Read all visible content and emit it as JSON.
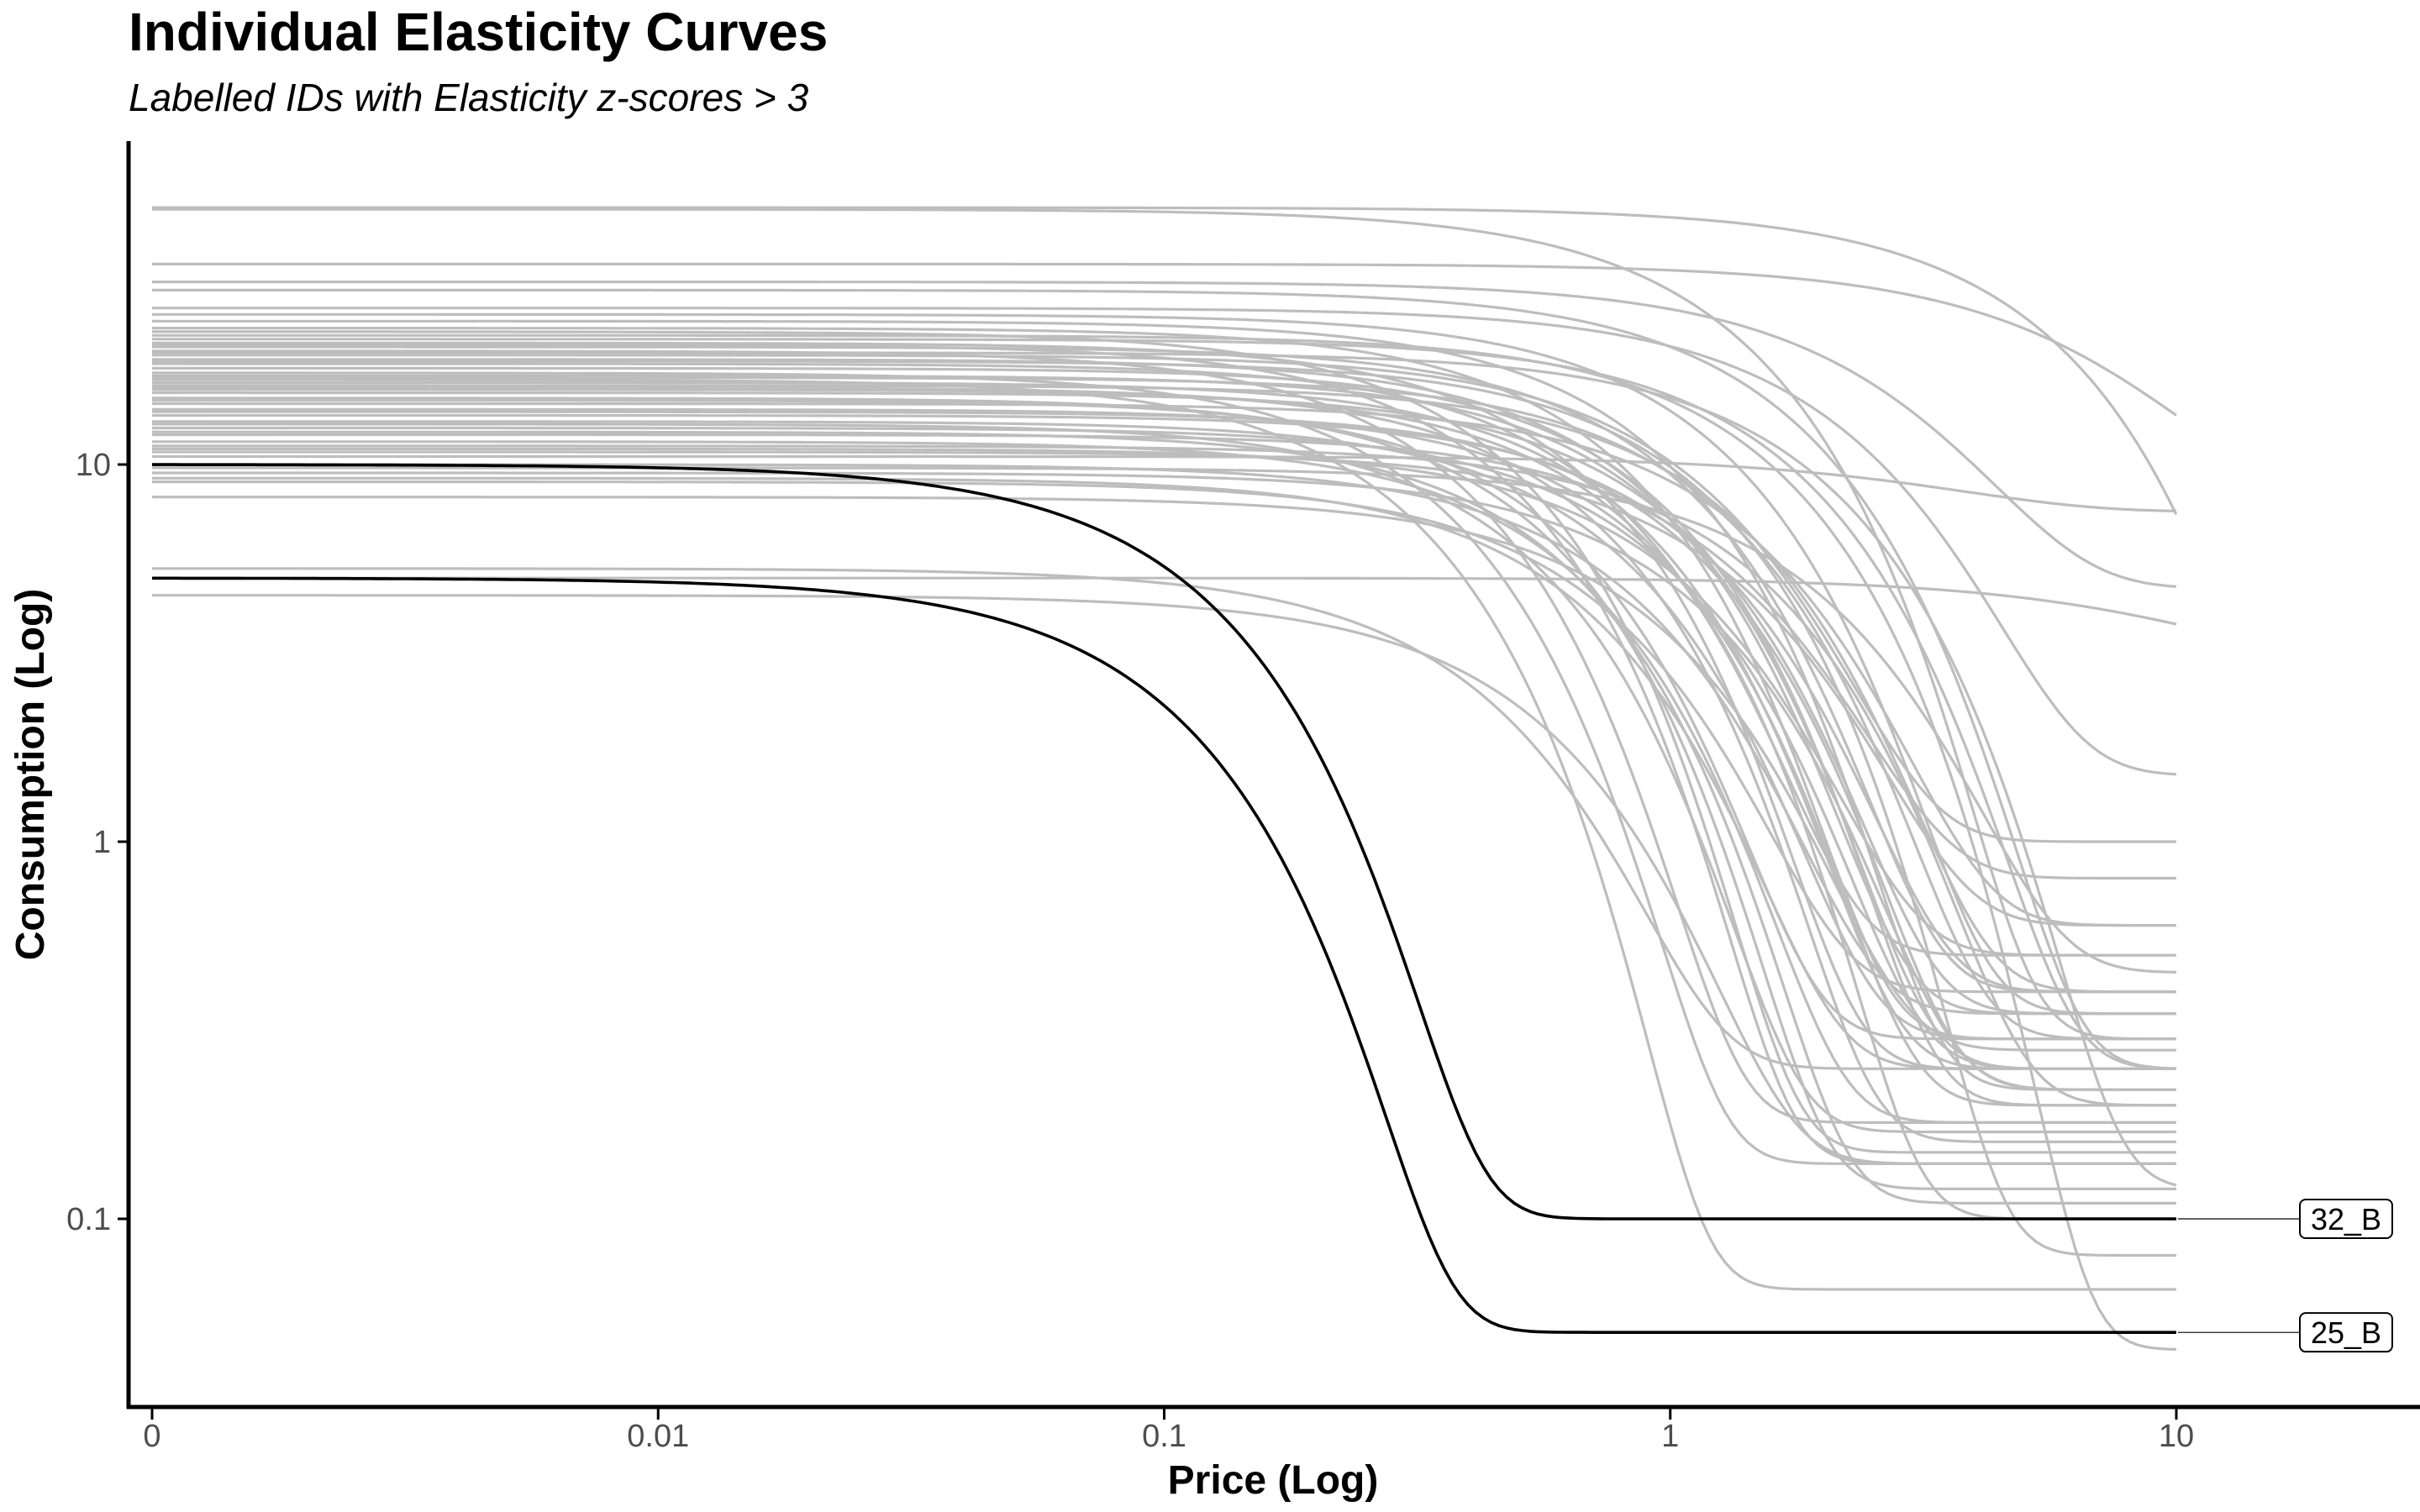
{
  "chart_data": {
    "type": "line",
    "title": "Individual Elasticity Curves",
    "subtitle": "Labelled IDs with Elasticity z-scores > 3",
    "xlabel": "Price (Log)",
    "ylabel": "Consumption (Log)",
    "x_scale": "log",
    "y_scale": "log",
    "x_ticks": [
      {
        "value": 0.001,
        "label": "0"
      },
      {
        "value": 0.01,
        "label": "0.01"
      },
      {
        "value": 0.1,
        "label": "0.1"
      },
      {
        "value": 1,
        "label": "1"
      },
      {
        "value": 10,
        "label": "10"
      }
    ],
    "y_ticks": [
      {
        "value": 0.1,
        "label": "0.1"
      },
      {
        "value": 1,
        "label": "1"
      },
      {
        "value": 10,
        "label": "10"
      }
    ],
    "xlim": [
      0.00088,
      50
    ],
    "ylim": [
      0.03,
      65
    ],
    "grid": false,
    "colors": {
      "background": "#e0e0e0",
      "highlight": "#000000",
      "axis": "#000000",
      "tick_label": "#4d4d4d"
    },
    "background_series": [
      {
        "q0": 48.0,
        "alpha": 0.06,
        "qmin": 0.2
      },
      {
        "q0": 47.5,
        "alpha": 0.5,
        "qmin": 0.3
      },
      {
        "q0": 34.0,
        "alpha": 0.05,
        "qmin": 8.2
      },
      {
        "q0": 30.5,
        "alpha": 0.2,
        "qmin": 4.7
      },
      {
        "q0": 29.0,
        "alpha": 0.35,
        "qmin": 0.25
      },
      {
        "q0": 25.0,
        "alpha": 0.6,
        "qmin": 0.35
      },
      {
        "q0": 24.0,
        "alpha": 0.9,
        "qmin": 0.22
      },
      {
        "q0": 23.0,
        "alpha": 1.2,
        "qmin": 0.3
      },
      {
        "q0": 22.5,
        "alpha": 2.5,
        "qmin": 0.15
      },
      {
        "q0": 21.0,
        "alpha": 1.5,
        "qmin": 0.25
      },
      {
        "q0": 20.5,
        "alpha": 0.8,
        "qmin": 0.4
      },
      {
        "q0": 20.0,
        "alpha": 3.5,
        "qmin": 0.18
      },
      {
        "q0": 19.5,
        "alpha": 0.7,
        "qmin": 1.0
      },
      {
        "q0": 19.0,
        "alpha": 1.0,
        "qmin": 0.35
      },
      {
        "q0": 18.5,
        "alpha": 1.3,
        "qmin": 0.5
      },
      {
        "q0": 18.0,
        "alpha": 0.9,
        "qmin": 0.2
      },
      {
        "q0": 17.5,
        "alpha": 4.0,
        "qmin": 0.14
      },
      {
        "q0": 17.0,
        "alpha": 0.6,
        "qmin": 0.3
      },
      {
        "q0": 16.5,
        "alpha": 1.1,
        "qmin": 0.25
      },
      {
        "q0": 16.0,
        "alpha": 1.4,
        "qmin": 0.16
      },
      {
        "q0": 15.5,
        "alpha": 0.8,
        "qmin": 0.35
      },
      {
        "q0": 15.0,
        "alpha": 2.0,
        "qmin": 0.12
      },
      {
        "q0": 14.5,
        "alpha": 0.5,
        "qmin": 0.6
      },
      {
        "q0": 14.0,
        "alpha": 1.0,
        "qmin": 0.2
      },
      {
        "q0": 13.5,
        "alpha": 0.7,
        "qmin": 0.4
      },
      {
        "q0": 13.0,
        "alpha": 1.2,
        "qmin": 0.3
      },
      {
        "q0": 12.5,
        "alpha": 0.9,
        "qmin": 0.25
      },
      {
        "q0": 12.0,
        "alpha": 0.6,
        "qmin": 0.8
      },
      {
        "q0": 11.5,
        "alpha": 1.6,
        "qmin": 0.18
      },
      {
        "q0": 11.0,
        "alpha": 0.8,
        "qmin": 0.5
      },
      {
        "q0": 10.5,
        "alpha": 0.15,
        "qmin": 7.5
      },
      {
        "q0": 10.0,
        "alpha": 1.1,
        "qmin": 0.35
      },
      {
        "q0": 9.5,
        "alpha": 0.7,
        "qmin": 0.22
      },
      {
        "q0": 9.0,
        "alpha": 1.3,
        "qmin": 0.4
      },
      {
        "q0": 8.2,
        "alpha": 0.9,
        "qmin": 0.28
      },
      {
        "q0": 9.8,
        "alpha": 0.3,
        "qmin": 0.45
      },
      {
        "q0": 11.2,
        "alpha": 0.45,
        "qmin": 0.2
      },
      {
        "q0": 21.5,
        "alpha": 0.35,
        "qmin": 0.25
      },
      {
        "q0": 26.0,
        "alpha": 0.25,
        "qmin": 1.5
      },
      {
        "q0": 19.8,
        "alpha": 0.28,
        "qmin": 0.12
      },
      {
        "q0": 17.2,
        "alpha": 0.9,
        "qmin": 0.25
      },
      {
        "q0": 14.8,
        "alpha": 1.8,
        "qmin": 0.3
      },
      {
        "q0": 12.8,
        "alpha": 2.2,
        "qmin": 0.17
      },
      {
        "q0": 10.8,
        "alpha": 0.55,
        "qmin": 0.6
      },
      {
        "q0": 9.2,
        "alpha": 1.5,
        "qmin": 0.25
      },
      {
        "q0": 16.2,
        "alpha": 0.55,
        "qmin": 0.4
      },
      {
        "q0": 13.8,
        "alpha": 0.75,
        "qmin": 0.22
      },
      {
        "q0": 18.8,
        "alpha": 0.65,
        "qmin": 0.08
      },
      {
        "q0": 15.8,
        "alpha": 1.1,
        "qmin": 0.1
      },
      {
        "q0": 22.0,
        "alpha": 0.4,
        "qmin": 0.045
      },
      {
        "q0": 5.3,
        "alpha": 3.0,
        "qmin": 0.25
      },
      {
        "q0": 5.0,
        "alpha": 0.03,
        "qmin": 3.0
      },
      {
        "q0": 4.5,
        "alpha": 2.0,
        "qmin": 0.14
      },
      {
        "q0": 16.8,
        "alpha": 5.0,
        "qmin": 0.065
      },
      {
        "q0": 20.8,
        "alpha": 2.6,
        "qmin": 0.14
      },
      {
        "q0": 12.2,
        "alpha": 1.7,
        "qmin": 0.11
      }
    ],
    "highlight_series": [
      {
        "name": "32_B",
        "q0": 10.0,
        "alpha": 20.0,
        "qmin": 0.1
      },
      {
        "name": "25_B",
        "q0": 5.0,
        "alpha": 25.0,
        "qmin": 0.05
      }
    ]
  }
}
